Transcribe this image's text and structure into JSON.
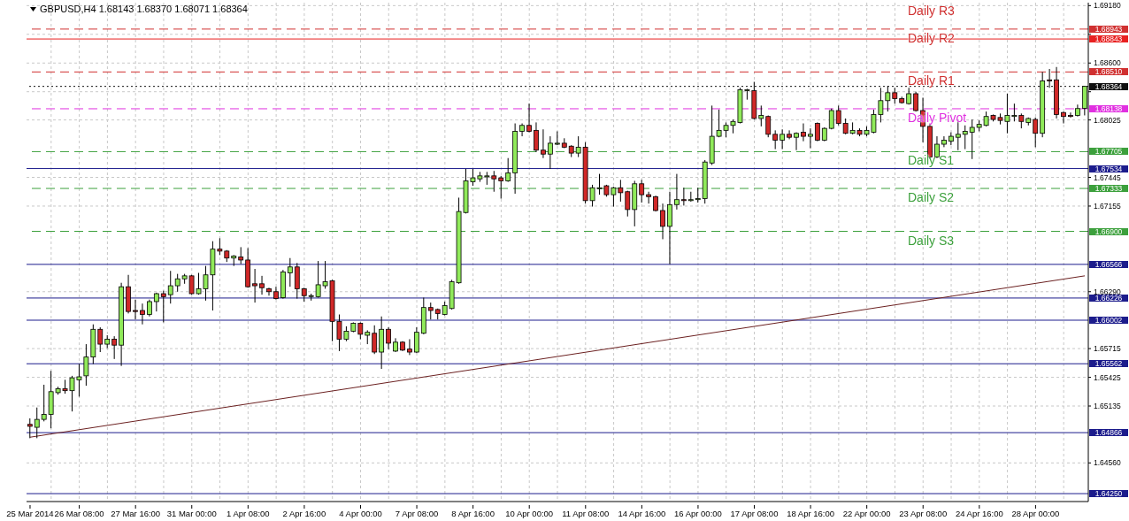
{
  "chart_data": {
    "type": "candlestick",
    "title": "GBPUSD,H4 1.68143 1.68370 1.68071 1.68364",
    "categories": [
      "25 Mar 2014",
      null,
      null,
      null,
      null,
      null,
      null,
      "26 Mar 08:00",
      null,
      null,
      null,
      null,
      null,
      null,
      null,
      "27 Mar 16:00",
      null,
      null,
      null,
      null,
      null,
      null,
      null,
      "31 Mar 00:00",
      null,
      null,
      null,
      null,
      null,
      null,
      null,
      "1 Apr 08:00",
      null,
      null,
      null,
      null,
      null,
      null,
      null,
      "2 Apr 16:00",
      null,
      null,
      null,
      null,
      null,
      null,
      null,
      "4 Apr 00:00",
      null,
      null,
      null,
      null,
      null,
      null,
      null,
      "7 Apr 08:00",
      null,
      null,
      null,
      null,
      null,
      null,
      null,
      "8 Apr 16:00",
      null,
      null,
      null,
      null,
      null,
      null,
      null,
      "10 Apr 00:00",
      null,
      null,
      null,
      null,
      null,
      null,
      null,
      "11 Apr 08:00",
      null,
      null,
      null,
      null,
      null,
      null,
      null,
      "14 Apr 16:00",
      null,
      null,
      null,
      null,
      null,
      null,
      null,
      "16 Apr 00:00",
      null,
      null,
      null,
      null,
      null,
      null,
      null,
      "17 Apr 08:00",
      null,
      null,
      null,
      null,
      null,
      null,
      null,
      "18 Apr 16:00",
      null,
      null,
      null,
      null,
      null,
      null,
      null,
      "22 Apr 00:00",
      null,
      null,
      null,
      null,
      null,
      null,
      null,
      "23 Apr 08:00",
      null,
      null,
      null,
      null,
      null,
      null,
      null,
      "24 Apr 16:00",
      null,
      null,
      null,
      null,
      null,
      null,
      null,
      "28 Apr 00:00",
      null,
      null,
      null,
      null,
      null,
      null,
      null
    ],
    "ohlc": [
      [
        1.6495,
        1.6501,
        1.6481,
        1.6493
      ],
      [
        1.6492,
        1.6512,
        1.6481,
        1.65
      ],
      [
        1.65,
        1.6535,
        1.6498,
        1.6505
      ],
      [
        1.6505,
        1.6549,
        1.6491,
        1.6528
      ],
      [
        1.6527,
        1.6533,
        1.6525,
        1.6531
      ],
      [
        1.6531,
        1.654,
        1.6526,
        1.6529
      ],
      [
        1.6529,
        1.6544,
        1.6508,
        1.6542
      ],
      [
        1.654,
        1.6556,
        1.6523,
        1.6543
      ],
      [
        1.6544,
        1.6576,
        1.6534,
        1.6563
      ],
      [
        1.6563,
        1.6596,
        1.6556,
        1.6591
      ],
      [
        1.6591,
        1.6593,
        1.6568,
        1.6576
      ],
      [
        1.6576,
        1.6585,
        1.6572,
        1.6581
      ],
      [
        1.6581,
        1.6584,
        1.6561,
        1.6575
      ],
      [
        1.6575,
        1.6638,
        1.6554,
        1.6634
      ],
      [
        1.6634,
        1.6646,
        1.6607,
        1.6609
      ],
      [
        1.661,
        1.6621,
        1.6601,
        1.6609
      ],
      [
        1.661,
        1.6617,
        1.6596,
        1.6606
      ],
      [
        1.6606,
        1.6621,
        1.6604,
        1.6619
      ],
      [
        1.6619,
        1.6628,
        1.6609,
        1.6627
      ],
      [
        1.6627,
        1.663,
        1.6598,
        1.6624
      ],
      [
        1.6626,
        1.665,
        1.6617,
        1.6635
      ],
      [
        1.6635,
        1.6647,
        1.6629,
        1.6642
      ],
      [
        1.6642,
        1.6647,
        1.6637,
        1.6645
      ],
      [
        1.6645,
        1.6646,
        1.6626,
        1.6627
      ],
      [
        1.6627,
        1.6648,
        1.6626,
        1.6632
      ],
      [
        1.6632,
        1.6655,
        1.662,
        1.6646
      ],
      [
        1.6646,
        1.668,
        1.661,
        1.6672
      ],
      [
        1.6672,
        1.6683,
        1.6666,
        1.667
      ],
      [
        1.667,
        1.6671,
        1.6659,
        1.6663
      ],
      [
        1.6663,
        1.6666,
        1.6655,
        1.6665
      ],
      [
        1.6664,
        1.6674,
        1.6657,
        1.6661
      ],
      [
        1.6661,
        1.6673,
        1.6633,
        1.6634
      ],
      [
        1.6637,
        1.6652,
        1.6618,
        1.6635
      ],
      [
        1.6637,
        1.6645,
        1.6626,
        1.6633
      ],
      [
        1.6632,
        1.6633,
        1.6625,
        1.6629
      ],
      [
        1.6629,
        1.6634,
        1.6621,
        1.6622
      ],
      [
        1.6623,
        1.6651,
        1.6622,
        1.6649
      ],
      [
        1.6648,
        1.6663,
        1.6634,
        1.6654
      ],
      [
        1.6654,
        1.6658,
        1.6622,
        1.6632
      ],
      [
        1.6632,
        1.6633,
        1.6619,
        1.6625
      ],
      [
        1.6625,
        1.6627,
        1.662,
        1.6625
      ],
      [
        1.6624,
        1.666,
        1.6623,
        1.6636
      ],
      [
        1.6635,
        1.666,
        1.6632,
        1.6639
      ],
      [
        1.664,
        1.6641,
        1.6579,
        1.6599
      ],
      [
        1.6599,
        1.6606,
        1.6569,
        1.6581
      ],
      [
        1.6581,
        1.6594,
        1.6579,
        1.6589
      ],
      [
        1.6589,
        1.6598,
        1.6588,
        1.6597
      ],
      [
        1.6597,
        1.6598,
        1.6581,
        1.6586
      ],
      [
        1.6585,
        1.659,
        1.6576,
        1.6588
      ],
      [
        1.6587,
        1.6595,
        1.6566,
        1.6568
      ],
      [
        1.6568,
        1.6604,
        1.6551,
        1.6591
      ],
      [
        1.6591,
        1.6593,
        1.6571,
        1.6577
      ],
      [
        1.6569,
        1.6582,
        1.6568,
        1.6578
      ],
      [
        1.6578,
        1.6579,
        1.6569,
        1.657
      ],
      [
        1.6571,
        1.6581,
        1.6565,
        1.6568
      ],
      [
        1.6568,
        1.6593,
        1.6567,
        1.6588
      ],
      [
        1.6587,
        1.6623,
        1.6586,
        1.6613
      ],
      [
        1.6613,
        1.6618,
        1.6601,
        1.661
      ],
      [
        1.6611,
        1.6612,
        1.6601,
        1.6607
      ],
      [
        1.6606,
        1.6619,
        1.6605,
        1.6615
      ],
      [
        1.6612,
        1.6641,
        1.6611,
        1.6639
      ],
      [
        1.6638,
        1.6724,
        1.6637,
        1.671
      ],
      [
        1.6709,
        1.6753,
        1.6708,
        1.6741
      ],
      [
        1.674,
        1.6753,
        1.6736,
        1.6744
      ],
      [
        1.6743,
        1.675,
        1.674,
        1.6746
      ],
      [
        1.6745,
        1.675,
        1.6737,
        1.6746
      ],
      [
        1.6746,
        1.6751,
        1.673,
        1.6743
      ],
      [
        1.6744,
        1.6746,
        1.6723,
        1.6741
      ],
      [
        1.6741,
        1.6764,
        1.674,
        1.6749
      ],
      [
        1.6749,
        1.6799,
        1.6728,
        1.6791
      ],
      [
        1.6791,
        1.6799,
        1.6786,
        1.6797
      ],
      [
        1.6797,
        1.6819,
        1.679,
        1.6791
      ],
      [
        1.6792,
        1.68,
        1.677,
        1.6772
      ],
      [
        1.6772,
        1.6793,
        1.6764,
        1.6768
      ],
      [
        1.6768,
        1.6786,
        1.6753,
        1.6779
      ],
      [
        1.6778,
        1.6791,
        1.6777,
        1.6779
      ],
      [
        1.6779,
        1.6784,
        1.6774,
        1.6775
      ],
      [
        1.6776,
        1.6777,
        1.6765,
        1.6769
      ],
      [
        1.6769,
        1.6786,
        1.6765,
        1.6775
      ],
      [
        1.6775,
        1.678,
        1.6718,
        1.6721
      ],
      [
        1.6721,
        1.6737,
        1.6715,
        1.6734
      ],
      [
        1.6733,
        1.6748,
        1.6727,
        1.6734
      ],
      [
        1.6736,
        1.6737,
        1.6725,
        1.6727
      ],
      [
        1.6727,
        1.6735,
        1.6715,
        1.6734
      ],
      [
        1.6734,
        1.6742,
        1.672,
        1.6729
      ],
      [
        1.673,
        1.6731,
        1.6705,
        1.6712
      ],
      [
        1.6712,
        1.6741,
        1.6695,
        1.6738
      ],
      [
        1.6738,
        1.6742,
        1.6719,
        1.6727
      ],
      [
        1.6727,
        1.673,
        1.6718,
        1.6725
      ],
      [
        1.6725,
        1.6726,
        1.671,
        1.6711
      ],
      [
        1.6711,
        1.6718,
        1.6682,
        1.6695
      ],
      [
        1.6695,
        1.673,
        1.6657,
        1.6717
      ],
      [
        1.6717,
        1.6748,
        1.6712,
        1.6722
      ],
      [
        1.6722,
        1.6734,
        1.6716,
        1.6721
      ],
      [
        1.6721,
        1.673,
        1.672,
        1.6722
      ],
      [
        1.6722,
        1.6734,
        1.6719,
        1.6723
      ],
      [
        1.6723,
        1.6762,
        1.6718,
        1.676
      ],
      [
        1.6759,
        1.6817,
        1.6757,
        1.6786
      ],
      [
        1.6786,
        1.6813,
        1.6785,
        1.6792
      ],
      [
        1.6792,
        1.68,
        1.6785,
        1.6797
      ],
      [
        1.6797,
        1.6803,
        1.6789,
        1.6801
      ],
      [
        1.68,
        1.6835,
        1.6799,
        1.6833
      ],
      [
        1.6832,
        1.6834,
        1.6823,
        1.6833
      ],
      [
        1.6832,
        1.6841,
        1.6803,
        1.6804
      ],
      [
        1.6804,
        1.6817,
        1.6796,
        1.6807
      ],
      [
        1.6806,
        1.6807,
        1.6785,
        1.6788
      ],
      [
        1.6788,
        1.6792,
        1.6773,
        1.6782
      ],
      [
        1.6782,
        1.6793,
        1.6773,
        1.6788
      ],
      [
        1.6788,
        1.6792,
        1.6783,
        1.6785
      ],
      [
        1.6785,
        1.679,
        1.6772,
        1.6789
      ],
      [
        1.679,
        1.6799,
        1.6781,
        1.6786
      ],
      [
        1.6786,
        1.6794,
        1.6774,
        1.6788
      ],
      [
        1.6799,
        1.68,
        1.6781,
        1.6782
      ],
      [
        1.6782,
        1.6795,
        1.6781,
        1.6794
      ],
      [
        1.6794,
        1.6814,
        1.6793,
        1.6812
      ],
      [
        1.6812,
        1.6817,
        1.6797,
        1.6799
      ],
      [
        1.6799,
        1.6804,
        1.6788,
        1.6789
      ],
      [
        1.6789,
        1.68,
        1.6788,
        1.6792
      ],
      [
        1.6792,
        1.6794,
        1.6786,
        1.6788
      ],
      [
        1.6788,
        1.6796,
        1.6786,
        1.6792
      ],
      [
        1.679,
        1.6813,
        1.6789,
        1.6808
      ],
      [
        1.6808,
        1.6835,
        1.68,
        1.6822
      ],
      [
        1.6822,
        1.6837,
        1.6811,
        1.683
      ],
      [
        1.683,
        1.6835,
        1.6819,
        1.6824
      ],
      [
        1.6824,
        1.6826,
        1.6819,
        1.682
      ],
      [
        1.6819,
        1.6835,
        1.6818,
        1.6829
      ],
      [
        1.6829,
        1.6831,
        1.6811,
        1.6812
      ],
      [
        1.6812,
        1.6825,
        1.678,
        1.6796
      ],
      [
        1.6796,
        1.6799,
        1.6763,
        1.6765
      ],
      [
        1.6765,
        1.6786,
        1.6764,
        1.6778
      ],
      [
        1.6778,
        1.6786,
        1.6775,
        1.6782
      ],
      [
        1.6781,
        1.679,
        1.6777,
        1.6786
      ],
      [
        1.6785,
        1.6803,
        1.6772,
        1.6788
      ],
      [
        1.6788,
        1.6797,
        1.6773,
        1.6791
      ],
      [
        1.679,
        1.6803,
        1.6763,
        1.6795
      ],
      [
        1.6795,
        1.6802,
        1.6791,
        1.6798
      ],
      [
        1.6797,
        1.6811,
        1.6796,
        1.6806
      ],
      [
        1.6807,
        1.6808,
        1.6801,
        1.6803
      ],
      [
        1.6805,
        1.6809,
        1.6798,
        1.6802
      ],
      [
        1.6801,
        1.6829,
        1.6789,
        1.6807
      ],
      [
        1.6806,
        1.6819,
        1.6801,
        1.6807
      ],
      [
        1.6807,
        1.6809,
        1.6794,
        1.6801
      ],
      [
        1.68,
        1.6805,
        1.6797,
        1.6804
      ],
      [
        1.6803,
        1.6805,
        1.6775,
        1.6789
      ],
      [
        1.6789,
        1.6851,
        1.6785,
        1.6842
      ],
      [
        1.6843,
        1.6854,
        1.6835,
        1.6842
      ],
      [
        1.6843,
        1.6856,
        1.6804,
        1.6808
      ],
      [
        1.681,
        1.6811,
        1.6799,
        1.6806
      ],
      [
        1.6807,
        1.681,
        1.6805,
        1.6806
      ],
      [
        1.6807,
        1.6818,
        1.6806,
        1.6814
      ],
      [
        1.68143,
        1.6837,
        1.68071,
        1.68364
      ]
    ],
    "colors": [
      "#d02828",
      "#90ea5a",
      "#90ea5a",
      "#90ea5a",
      "#90ea5a",
      "#d02828",
      "#90ea5a",
      "#90ea5a",
      "#90ea5a",
      "#90ea5a",
      "#d02828",
      "#90ea5a",
      "#d02828",
      "#90ea5a",
      "#d02828",
      "#d02828",
      "#d02828",
      "#90ea5a",
      "#90ea5a",
      "#d02828",
      "#90ea5a",
      "#90ea5a",
      "#90ea5a",
      "#d02828",
      "#90ea5a",
      "#90ea5a",
      "#90ea5a",
      "#d02828",
      "#d02828",
      "#90ea5a",
      "#d02828",
      "#d02828",
      "#d02828",
      "#d02828",
      "#d02828",
      "#d02828",
      "#90ea5a",
      "#90ea5a",
      "#d02828",
      "#d02828",
      "#90ea5a",
      "#90ea5a",
      "#90ea5a",
      "#d02828",
      "#d02828",
      "#90ea5a",
      "#90ea5a",
      "#d02828",
      "#90ea5a",
      "#d02828",
      "#90ea5a",
      "#d02828",
      "#90ea5a",
      "#d02828",
      "#d02828",
      "#90ea5a",
      "#90ea5a",
      "#d02828",
      "#d02828",
      "#90ea5a",
      "#90ea5a",
      "#90ea5a",
      "#90ea5a",
      "#90ea5a",
      "#90ea5a",
      "#90ea5a",
      "#d02828",
      "#d02828",
      "#90ea5a",
      "#90ea5a",
      "#90ea5a",
      "#d02828",
      "#d02828",
      "#d02828",
      "#90ea5a",
      "#90ea5a",
      "#d02828",
      "#d02828",
      "#90ea5a",
      "#d02828",
      "#90ea5a",
      "#90ea5a",
      "#d02828",
      "#90ea5a",
      "#d02828",
      "#d02828",
      "#90ea5a",
      "#d02828",
      "#d02828",
      "#d02828",
      "#d02828",
      "#90ea5a",
      "#90ea5a",
      "#d02828",
      "#90ea5a",
      "#90ea5a",
      "#90ea5a",
      "#90ea5a",
      "#90ea5a",
      "#90ea5a",
      "#90ea5a",
      "#90ea5a",
      "#90ea5a",
      "#d02828",
      "#90ea5a",
      "#d02828",
      "#d02828",
      "#90ea5a",
      "#d02828",
      "#90ea5a",
      "#d02828",
      "#90ea5a",
      "#d02828",
      "#90ea5a",
      "#90ea5a",
      "#d02828",
      "#d02828",
      "#90ea5a",
      "#d02828",
      "#90ea5a",
      "#90ea5a",
      "#90ea5a",
      "#90ea5a",
      "#d02828",
      "#d02828",
      "#90ea5a",
      "#d02828",
      "#d02828",
      "#d02828",
      "#90ea5a",
      "#90ea5a",
      "#90ea5a",
      "#90ea5a",
      "#90ea5a",
      "#90ea5a",
      "#90ea5a",
      "#90ea5a",
      "#d02828",
      "#d02828",
      "#90ea5a",
      "#90ea5a",
      "#d02828",
      "#90ea5a",
      "#d02828",
      "#90ea5a",
      "#d02828",
      "#d02828",
      "#d02828",
      "#d02828",
      "#90ea5a",
      "#90ea5a"
    ],
    "series": [
      {
        "type": "line",
        "color": "#6b2020",
        "values": [
          1.6482,
          null,
          null,
          null,
          null,
          null,
          null,
          null,
          null,
          null,
          null,
          null,
          null,
          null,
          null,
          null,
          null,
          null,
          null,
          null,
          null,
          null,
          null,
          null,
          null,
          null,
          null,
          null,
          null,
          null,
          null,
          null,
          null,
          null,
          null,
          null,
          null,
          null,
          null,
          null,
          null,
          null,
          null,
          null,
          null,
          null,
          null,
          null,
          null,
          null,
          null,
          null,
          null,
          null,
          null,
          null,
          null,
          null,
          null,
          null,
          null,
          null,
          null,
          null,
          null,
          null,
          null,
          null,
          null,
          null,
          null,
          null,
          null,
          null,
          null,
          null,
          null,
          null,
          null,
          null,
          null,
          null,
          null,
          null,
          null,
          null,
          null,
          null,
          null,
          null,
          null,
          null,
          null,
          null,
          null,
          null,
          null,
          null,
          null,
          null,
          null,
          null,
          null,
          null,
          null,
          null,
          null,
          null,
          null,
          null,
          null,
          null,
          null,
          null,
          null,
          null,
          null,
          null,
          null,
          null,
          null,
          null,
          null,
          null,
          null,
          null,
          null,
          null,
          null,
          null,
          null,
          null,
          null,
          null,
          null,
          null,
          null,
          null,
          null,
          null,
          null,
          null,
          null,
          null,
          null,
          null,
          null,
          null,
          null,
          null,
          1.6645
        ]
      }
    ],
    "ylim": [
      1.6417,
      1.6921
    ],
    "yticks": [
      {
        "value": 1.6918,
        "label": "1.69180"
      },
      {
        "value": 1.6889,
        "label": null
      },
      {
        "value": 1.686,
        "label": "1.68600"
      },
      {
        "value": 1.6831,
        "label": null
      },
      1.68025,
      1.67445,
      1.67155,
      {
        "value": 1.6629,
        "label": "1.66290"
      },
      1.65715,
      1.65425,
      1.65135,
      {
        "value": 1.6456,
        "label": "1.64560"
      }
    ],
    "grid": true,
    "ref_lines": [
      {
        "axis": "y",
        "value": 1.68943,
        "label": "Daily R2",
        "color": "#d03030",
        "line_style": "dashed"
      },
      {
        "axis": "y",
        "value": 1.68843,
        "color": "#e82020",
        "line_style": "solid"
      },
      {
        "axis": "y",
        "value": 1.6851,
        "label": "Daily R1",
        "color": "#d03030",
        "line_style": "dashed"
      },
      {
        "axis": "y",
        "value": 1.68364,
        "color": "#101010",
        "line_style": "dotted"
      },
      {
        "axis": "y",
        "value": 1.68138,
        "label": "Daily Pivot",
        "color": "#e030e0",
        "line_style": "dashed"
      },
      {
        "axis": "y",
        "value": 1.67705,
        "label": "Daily S1",
        "color": "#3ca03c",
        "line_style": "dashed"
      },
      {
        "axis": "y",
        "value": 1.67534,
        "color": "#1c1c8c",
        "line_style": "solid"
      },
      {
        "axis": "y",
        "value": 1.67333,
        "label": "Daily S2",
        "color": "#3ca03c",
        "line_style": "dashed"
      },
      {
        "axis": "y",
        "value": 1.669,
        "label": "Daily S3",
        "color": "#3ca03c",
        "line_style": "dashed"
      },
      {
        "axis": "y",
        "value": 1.66566,
        "color": "#1c1c8c",
        "line_style": "solid"
      },
      {
        "axis": "y",
        "value": 1.66226,
        "color": "#1c1c8c",
        "line_style": "solid"
      },
      {
        "axis": "y",
        "value": 1.66002,
        "color": "#1c1c8c",
        "line_style": "solid"
      },
      {
        "axis": "y",
        "value": 1.65562,
        "color": "#1c1c8c",
        "line_style": "solid"
      },
      {
        "axis": "y",
        "value": 1.64866,
        "color": "#1c1c8c",
        "line_style": "solid"
      },
      {
        "axis": "y",
        "value": 1.6425,
        "color": "#1c1c8c",
        "line_style": "solid"
      }
    ],
    "annotations": [
      "Daily R3",
      "1.68943",
      "1.68843",
      "1.68510",
      "1.68364",
      "1.68138",
      "1.67705",
      "1.67534",
      "1.67333",
      "1.66900",
      "1.66566",
      "1.66226",
      "1.66002",
      "1.65562",
      "1.64866",
      "1.64250"
    ]
  }
}
